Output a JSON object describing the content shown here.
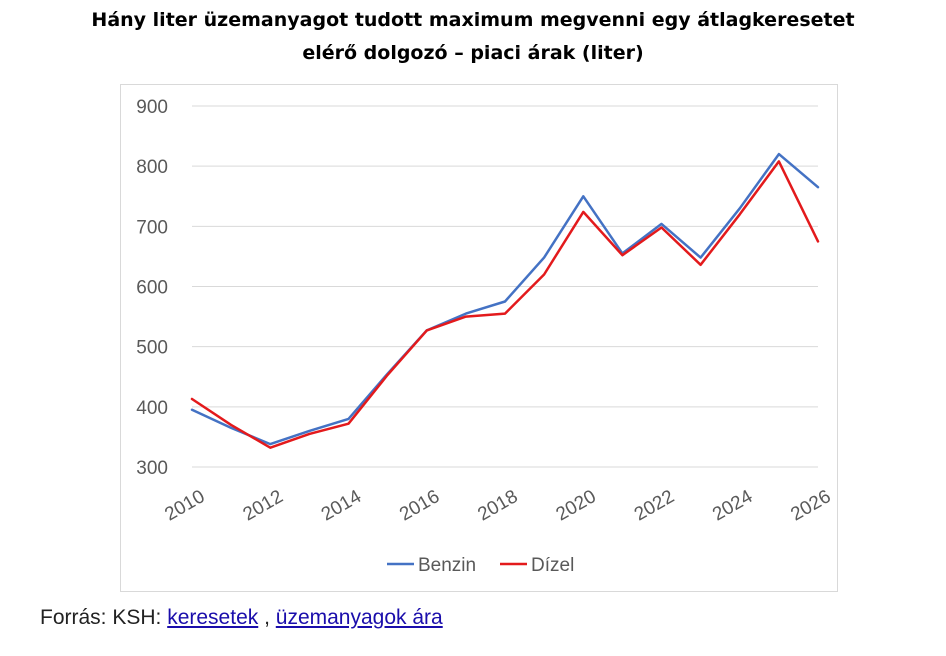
{
  "page": {
    "title_line1": "Hány liter üzemanyagot tudott maximum megvenni egy átlagkeresetet",
    "title_line2": "elérő dolgozó – piaci árak (liter)",
    "source_prefix": "Forrás: KSH:",
    "source_link1": "keresetek",
    "source_sep": ",",
    "source_link2": "üzemanyagok ára",
    "link_color": "#1a0dab"
  },
  "chart_data": {
    "type": "line",
    "title": "Hány liter üzemanyagot tudott maximum megvenni egy átlagkeresetet elérő dolgozó – piaci árak (liter)",
    "xlabel": "",
    "ylabel": "",
    "x": [
      2010,
      2011,
      2012,
      2013,
      2014,
      2015,
      2016,
      2017,
      2018,
      2019,
      2020,
      2021,
      2022,
      2023,
      2024,
      2025,
      2026
    ],
    "x_ticks": [
      "2010",
      "2012",
      "2014",
      "2016",
      "2018",
      "2020",
      "2022",
      "2024",
      "2026"
    ],
    "y_ticks": [
      "300",
      "400",
      "500",
      "600",
      "700",
      "800",
      "900"
    ],
    "xlim": [
      2010,
      2026
    ],
    "ylim": [
      300,
      900
    ],
    "grid": "horizontal",
    "legend_position": "bottom",
    "series": [
      {
        "name": "Benzin",
        "color": "#4472c4",
        "values": [
          395,
          365,
          338,
          360,
          380,
          455,
          527,
          555,
          575,
          648,
          750,
          655,
          704,
          648,
          730,
          820,
          765
        ]
      },
      {
        "name": "Dízel",
        "color": "#e31a1c",
        "values": [
          413,
          370,
          332,
          355,
          372,
          453,
          527,
          550,
          555,
          620,
          724,
          652,
          698,
          636,
          720,
          808,
          675
        ]
      }
    ]
  }
}
